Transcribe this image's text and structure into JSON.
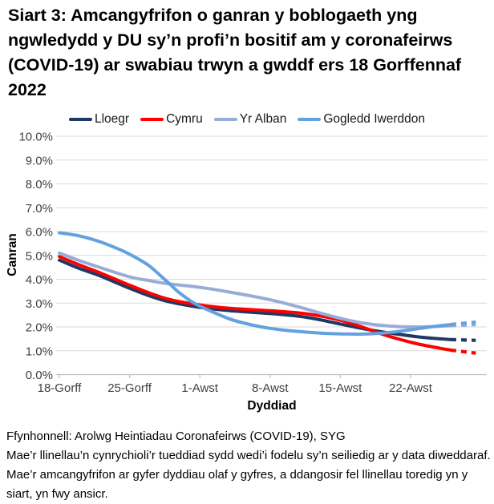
{
  "title": "Siart 3: Amcangyfrifon o ganran y boblogaeth yng ngwledydd y DU sy’n profi’n bositif am y coronafeirws (COVID-19) ar swabiau trwyn a gwddf ers 18 Gorffennaf 2022",
  "footer": {
    "source": "Ffynhonnell: Arolwg Heintiadau Coronafeirws (COVID-19), SYG",
    "note": "Mae’r llinellau’n cynrychioli’r tueddiad sydd wedi’i fodelu sy’n seiliedig ar y data diweddaraf. Mae’r amcangyfrifon ar gyfer dyddiau olaf y gyfres, a ddangosir fel llinellau toredig yn y siart, yn fwy ansicr."
  },
  "chart_data": {
    "type": "line",
    "title": "Siart 3: Amcangyfrifon o ganran y boblogaeth yng ngwledydd y DU sy’n profi’n bositif am y coronafeirws (COVID-19) ar swabiau trwyn a gwddf ers 18 Gorffennaf 2022",
    "xlabel": "Dyddiad",
    "ylabel": "Canran",
    "ylim": [
      0,
      10
    ],
    "grid": true,
    "legend_position": "top",
    "y_tick_labels": [
      "0.0%",
      "1.0%",
      "2.0%",
      "3.0%",
      "4.0%",
      "5.0%",
      "6.0%",
      "7.0%",
      "8.0%",
      "9.0%",
      "10.0%"
    ],
    "x_ticks": [
      {
        "day": 0,
        "label": "18-Gorff"
      },
      {
        "day": 7,
        "label": "25-Gorff"
      },
      {
        "day": 14,
        "label": "1-Awst"
      },
      {
        "day": 21,
        "label": "8-Awst"
      },
      {
        "day": 28,
        "label": "15-Awst"
      },
      {
        "day": 35,
        "label": "22-Awst"
      }
    ],
    "x_unit": "days since 18 Gorffennaf 2022",
    "x_range_days": [
      0,
      42.6
    ],
    "series": [
      {
        "name": "Lloegr",
        "color": "#1F3864",
        "dash_from_day": 39,
        "points": [
          [
            0,
            4.8
          ],
          [
            2,
            4.45
          ],
          [
            4,
            4.15
          ],
          [
            7,
            3.62
          ],
          [
            9,
            3.3
          ],
          [
            11,
            3.05
          ],
          [
            14,
            2.82
          ],
          [
            17,
            2.68
          ],
          [
            21,
            2.56
          ],
          [
            24,
            2.44
          ],
          [
            26,
            2.3
          ],
          [
            28,
            2.12
          ],
          [
            30,
            1.95
          ],
          [
            32,
            1.8
          ],
          [
            34,
            1.68
          ],
          [
            36,
            1.57
          ],
          [
            38,
            1.5
          ],
          [
            39,
            1.47
          ],
          [
            40.5,
            1.45
          ],
          [
            41.5,
            1.44
          ]
        ]
      },
      {
        "name": "Cymru",
        "color": "#FE0000",
        "dash_from_day": 39,
        "points": [
          [
            0,
            4.95
          ],
          [
            2,
            4.6
          ],
          [
            4,
            4.28
          ],
          [
            7,
            3.75
          ],
          [
            9,
            3.42
          ],
          [
            11,
            3.15
          ],
          [
            14,
            2.92
          ],
          [
            17,
            2.78
          ],
          [
            21,
            2.68
          ],
          [
            24,
            2.58
          ],
          [
            26,
            2.46
          ],
          [
            28,
            2.28
          ],
          [
            30,
            2.02
          ],
          [
            32,
            1.72
          ],
          [
            34,
            1.47
          ],
          [
            36,
            1.26
          ],
          [
            38,
            1.1
          ],
          [
            39,
            1.03
          ],
          [
            40.5,
            0.95
          ],
          [
            41.5,
            0.9
          ]
        ]
      },
      {
        "name": "Yr Alban",
        "color": "#98ACD8",
        "dash_from_day": 39,
        "points": [
          [
            0,
            5.1
          ],
          [
            2,
            4.78
          ],
          [
            4,
            4.5
          ],
          [
            7,
            4.1
          ],
          [
            9,
            3.94
          ],
          [
            11,
            3.8
          ],
          [
            14,
            3.66
          ],
          [
            17,
            3.46
          ],
          [
            21,
            3.14
          ],
          [
            24,
            2.82
          ],
          [
            26,
            2.58
          ],
          [
            28,
            2.36
          ],
          [
            30,
            2.18
          ],
          [
            32,
            2.07
          ],
          [
            34,
            2.01
          ],
          [
            36,
            2.0
          ],
          [
            38,
            2.03
          ],
          [
            39,
            2.05
          ],
          [
            40.5,
            2.08
          ],
          [
            41.5,
            2.1
          ]
        ]
      },
      {
        "name": "Gogledd Iwerddon",
        "color": "#63A1E0",
        "dash_from_day": 39,
        "points": [
          [
            0,
            5.95
          ],
          [
            2,
            5.82
          ],
          [
            4,
            5.58
          ],
          [
            6,
            5.25
          ],
          [
            7,
            5.05
          ],
          [
            8,
            4.82
          ],
          [
            9,
            4.55
          ],
          [
            10,
            4.18
          ],
          [
            11,
            3.8
          ],
          [
            12,
            3.42
          ],
          [
            13.5,
            2.98
          ],
          [
            15,
            2.68
          ],
          [
            17,
            2.33
          ],
          [
            19,
            2.1
          ],
          [
            21,
            1.94
          ],
          [
            23,
            1.84
          ],
          [
            25,
            1.77
          ],
          [
            27,
            1.72
          ],
          [
            29,
            1.7
          ],
          [
            31,
            1.71
          ],
          [
            33,
            1.77
          ],
          [
            35,
            1.88
          ],
          [
            37,
            2.0
          ],
          [
            39,
            2.1
          ],
          [
            40.5,
            2.16
          ],
          [
            41.5,
            2.2
          ]
        ]
      }
    ],
    "axis_colors": {
      "gridline": "#d9d9d9",
      "axis_line": "#bfbfbf",
      "tick_label": "#404040"
    }
  }
}
